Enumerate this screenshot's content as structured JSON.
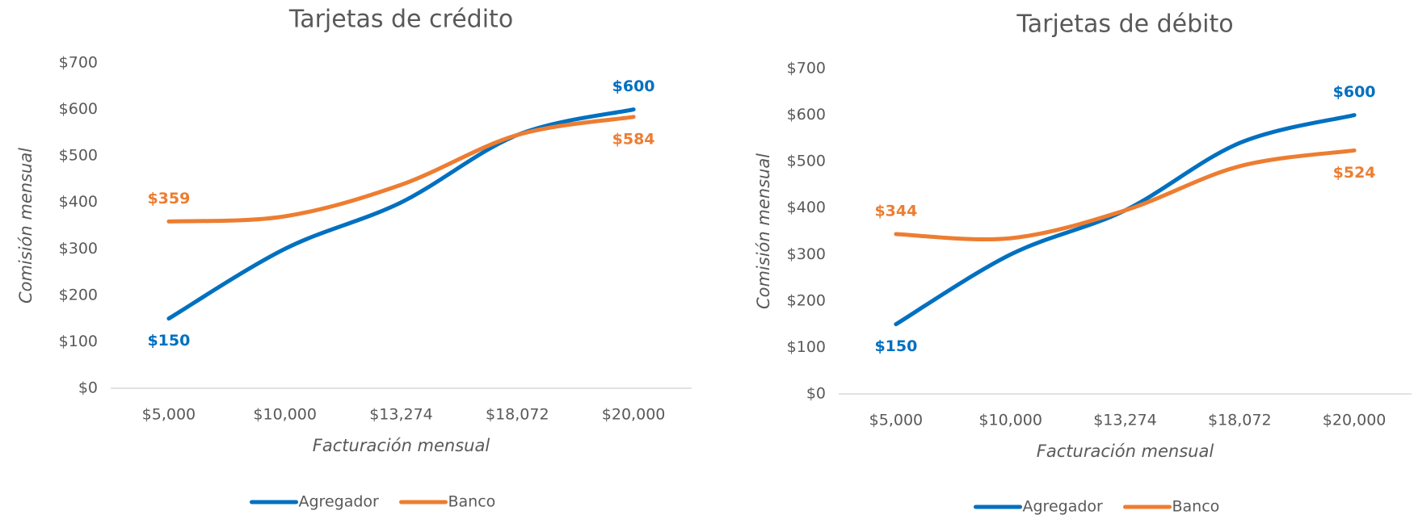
{
  "chart_data": [
    {
      "type": "line",
      "title": "Tarjetas de crédito",
      "x_label": "Facturación mensual",
      "y_label": "Comisión mensual",
      "categories": [
        "$5,000",
        "$10,000",
        "$13,274",
        "$18,072",
        "$20,000"
      ],
      "series": [
        {
          "name": "Agregador",
          "color": "#0070c0",
          "values": [
            150,
            300,
            400,
            545,
            600
          ],
          "value_labels": [
            "$150",
            null,
            null,
            null,
            "$600"
          ]
        },
        {
          "name": "Banco",
          "color": "#ed7d31",
          "values": [
            359,
            370,
            438,
            545,
            584
          ],
          "value_labels": [
            "$359",
            null,
            null,
            null,
            "$584"
          ]
        }
      ],
      "ylim": [
        0,
        700
      ],
      "yticks": [
        {
          "value": 0,
          "label": "$0"
        },
        {
          "value": 100,
          "label": "$100"
        },
        {
          "value": 200,
          "label": "$200"
        },
        {
          "value": 300,
          "label": "$300"
        },
        {
          "value": 400,
          "label": "$400"
        },
        {
          "value": 500,
          "label": "$500"
        },
        {
          "value": 600,
          "label": "$600"
        },
        {
          "value": 700,
          "label": "$700"
        }
      ],
      "grid": false,
      "legend": "bottom"
    },
    {
      "type": "line",
      "title": "Tarjetas de débito",
      "x_label": "Facturación mensual",
      "y_label": "Comisión mensual",
      "categories": [
        "$5,000",
        "$10,000",
        "$13,274",
        "$18,072",
        "$20,000"
      ],
      "series": [
        {
          "name": "Agregador",
          "color": "#0070c0",
          "values": [
            150,
            300,
            395,
            540,
            600
          ],
          "value_labels": [
            "$150",
            null,
            null,
            null,
            "$600"
          ]
        },
        {
          "name": "Banco",
          "color": "#ed7d31",
          "values": [
            344,
            335,
            395,
            490,
            524
          ],
          "value_labels": [
            "$344",
            null,
            null,
            null,
            "$524"
          ]
        }
      ],
      "ylim": [
        0,
        700
      ],
      "yticks": [
        {
          "value": 0,
          "label": "$0"
        },
        {
          "value": 100,
          "label": "$100"
        },
        {
          "value": 200,
          "label": "$200"
        },
        {
          "value": 300,
          "label": "$300"
        },
        {
          "value": 400,
          "label": "$400"
        },
        {
          "value": 500,
          "label": "$500"
        },
        {
          "value": 600,
          "label": "$600"
        },
        {
          "value": 700,
          "label": "$700"
        }
      ],
      "grid": false,
      "legend": "bottom"
    }
  ]
}
